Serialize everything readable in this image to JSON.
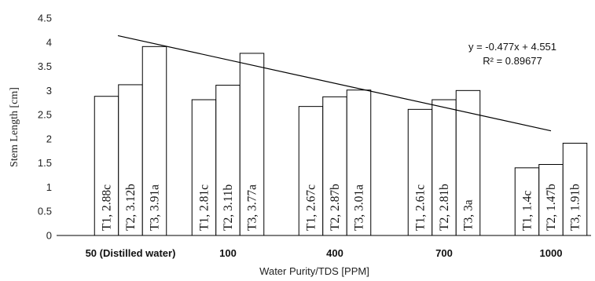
{
  "chart_data": {
    "type": "bar",
    "xlabel": "Water Purity/TDS [PPM]",
    "ylabel": "Stem Length [cm]",
    "ylim": [
      0,
      4.5
    ],
    "yticks": [
      "0",
      "0.5",
      "1",
      "1.5",
      "2",
      "2.5",
      "3",
      "3.5",
      "4",
      "4.5"
    ],
    "categories": [
      "50 (Distilled water)",
      "100",
      "400",
      "700",
      "1000"
    ],
    "series": [
      {
        "name": "T1",
        "values": [
          2.88,
          2.81,
          2.67,
          2.61,
          1.4
        ],
        "labels": [
          "T1, 2.88c",
          "T1, 2.81c",
          "T1, 2.67c",
          "T1, 2.61c",
          "T1, 1.4c"
        ]
      },
      {
        "name": "T2",
        "values": [
          3.12,
          3.11,
          2.87,
          2.81,
          1.47
        ],
        "labels": [
          "T2, 3.12b",
          "T2, 3.11b",
          "T2, 2.87b",
          "T2, 2.81b",
          "T2, 1.47b"
        ]
      },
      {
        "name": "T3",
        "values": [
          3.91,
          3.77,
          3.01,
          3.0,
          1.91
        ],
        "labels": [
          "T3, 3.91a",
          "T3, 3.77a",
          "T3, 3.01a",
          "T3, 3a",
          "T3, 1.91b"
        ]
      }
    ],
    "trendline": {
      "slope": -0.477,
      "intercept": 4.551,
      "equation": "y = -0.477x + 4.551",
      "r2_label": "R² = 0.89677"
    },
    "grid": false,
    "legend": "none"
  }
}
